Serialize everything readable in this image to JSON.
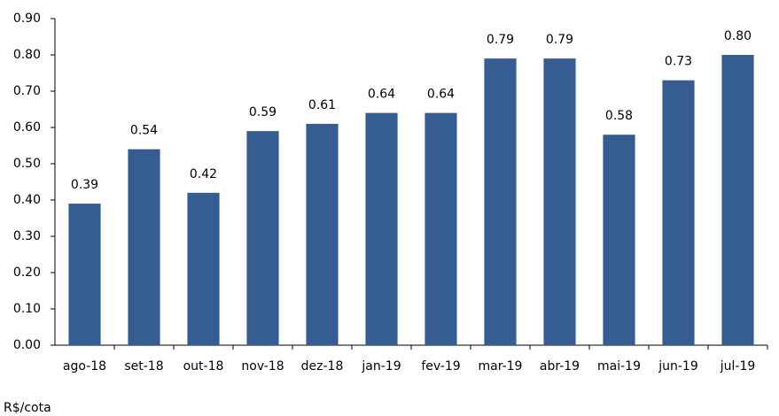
{
  "chart_data": {
    "type": "bar",
    "categories": [
      "ago-18",
      "set-18",
      "out-18",
      "nov-18",
      "dez-18",
      "jan-19",
      "fev-19",
      "mar-19",
      "abr-19",
      "mai-19",
      "jun-19",
      "jul-19"
    ],
    "values": [
      0.39,
      0.54,
      0.42,
      0.59,
      0.61,
      0.64,
      0.64,
      0.79,
      0.79,
      0.58,
      0.73,
      0.8
    ],
    "value_labels": [
      "0.39",
      "0.54",
      "0.42",
      "0.59",
      "0.61",
      "0.64",
      "0.64",
      "0.79",
      "0.79",
      "0.58",
      "0.73",
      "0.80"
    ],
    "color": "#355d91",
    "ylim": [
      0,
      0.9
    ],
    "yticks": [
      {
        "value": 0,
        "label": "0.00"
      },
      {
        "value": 0.1,
        "label": "0.10"
      },
      {
        "value": 0.2,
        "label": "0.20"
      },
      {
        "value": 0.3,
        "label": "0.30"
      },
      {
        "value": 0.4,
        "label": "0.40"
      },
      {
        "value": 0.5,
        "label": "0.50"
      },
      {
        "value": 0.6,
        "label": "0.60"
      },
      {
        "value": 0.7,
        "label": "0.70"
      },
      {
        "value": 0.8,
        "label": "0.80"
      },
      {
        "value": 0.9,
        "label": "0.90"
      }
    ],
    "grid": false,
    "unit_label": "R$/cota"
  }
}
